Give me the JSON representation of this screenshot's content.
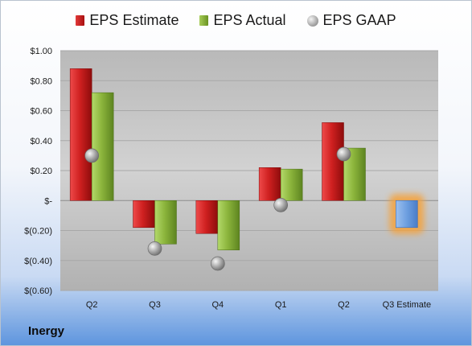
{
  "company": "Inergy",
  "legend": [
    {
      "key": "estimate",
      "label": "EPS Estimate"
    },
    {
      "key": "actual",
      "label": "EPS Actual"
    },
    {
      "key": "gaap",
      "label": "EPS GAAP"
    }
  ],
  "colors": {
    "estimate": "#c41e1e",
    "actual": "#86ad36",
    "gaap": "#a0a0a0",
    "estimate_highlight": "#6d9fe0",
    "highlight_glow": "#f5a23a"
  },
  "chart_data": {
    "type": "bar",
    "categories": [
      "Q2",
      "Q3",
      "Q4",
      "Q1",
      "Q2",
      "Q3 Estimate"
    ],
    "series": [
      {
        "name": "EPS Estimate",
        "values": [
          0.88,
          -0.18,
          -0.22,
          0.22,
          0.52,
          -0.18
        ]
      },
      {
        "name": "EPS Actual",
        "values": [
          0.72,
          -0.29,
          -0.33,
          0.21,
          0.35,
          null
        ]
      },
      {
        "name": "EPS GAAP",
        "values": [
          0.3,
          -0.32,
          -0.42,
          -0.03,
          0.31,
          null
        ]
      }
    ],
    "ylim": [
      -0.6,
      1.0
    ],
    "yticks": [
      1.0,
      0.8,
      0.6,
      0.4,
      0.2,
      0,
      -0.2,
      -0.4,
      -0.6
    ],
    "ytick_labels": [
      "$1.00",
      "$0.80",
      "$0.60",
      "$0.40",
      "$0.20",
      "$-",
      "$(0.20)",
      "$(0.40)",
      "$(0.60)"
    ],
    "highlight_category": "Q3 Estimate",
    "grid": true,
    "legend_position": "top"
  }
}
